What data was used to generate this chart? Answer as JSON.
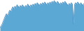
{
  "line_color": "#4a90c4",
  "fill_color": "#5ba8d4",
  "background_color": "#ffffff",
  "ylim_min": 0,
  "ylim_max": 45
}
